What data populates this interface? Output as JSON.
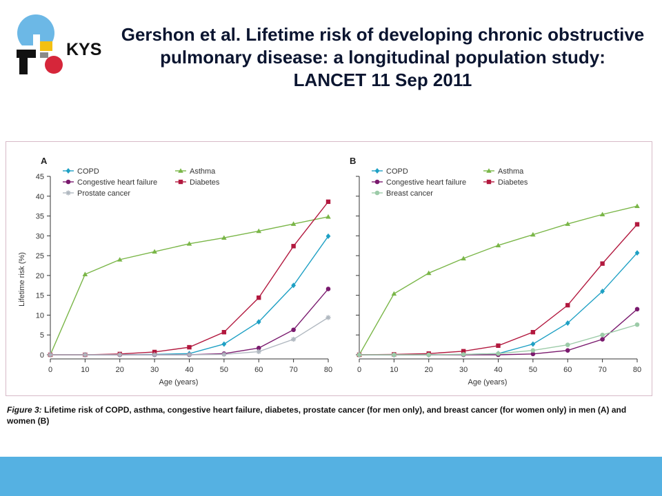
{
  "logo": {
    "text": "KYS",
    "colors": {
      "blue": "#6cb8e6",
      "red": "#d6263a",
      "black": "#111111",
      "yellow": "#f3c012",
      "gray": "#8a8a8a"
    }
  },
  "title": {
    "line1": "Gershon et al. Lifetime risk of developing chronic obstructive",
    "line2": "pulmonary disease: a longitudinal population study:",
    "line3": "LANCET 11 Sep 2011"
  },
  "caption": {
    "label": "Figure 3:",
    "text": " Lifetime risk of COPD, asthma, congestive heart failure, diabetes, prostate cancer (for men only), and breast cancer (for women only) in men (A) and women (B)"
  },
  "colors": {
    "copd": "#1ea0c4",
    "asthma": "#7ab648",
    "chf": "#7a1a6e",
    "diabetes": "#b2183e",
    "prostate": "#b0b8c0",
    "breast": "#9ccba8",
    "axis": "#333333",
    "frame": "#d7b9c7",
    "bottom_bar": "#55b1e2"
  },
  "chart_data": [
    {
      "panel_label": "A",
      "type": "line",
      "xlabel": "Age (years)",
      "ylabel": "Lifetime risk (%)",
      "x": [
        0,
        10,
        20,
        30,
        40,
        50,
        60,
        70,
        80
      ],
      "xticks": [
        "0",
        "10",
        "20",
        "30",
        "40",
        "50",
        "60",
        "70",
        "80"
      ],
      "yticks": [
        "0",
        "5",
        "10",
        "15",
        "20",
        "25",
        "30",
        "35",
        "40",
        "45"
      ],
      "xlim": [
        0,
        80
      ],
      "ylim": [
        0,
        45
      ],
      "legend_position": "top-left",
      "series": [
        {
          "name": "COPD",
          "key": "copd",
          "marker": "diamond",
          "values": [
            0,
            0,
            0,
            0.1,
            0.3,
            2.7,
            8.3,
            17.5,
            29.9
          ]
        },
        {
          "name": "Asthma",
          "key": "asthma",
          "marker": "triangle",
          "values": [
            0,
            20.3,
            24,
            26,
            28,
            29.5,
            31.2,
            33,
            34.8
          ]
        },
        {
          "name": "Congestive heart failure",
          "key": "chf",
          "marker": "circle",
          "values": [
            0,
            0,
            0,
            0,
            0,
            0.3,
            1.7,
            6.3,
            16.6
          ]
        },
        {
          "name": "Diabetes",
          "key": "diabetes",
          "marker": "square",
          "values": [
            0,
            0,
            0.2,
            0.7,
            1.9,
            5.7,
            14.4,
            27.4,
            38.6
          ]
        },
        {
          "name": "Prostate cancer",
          "key": "prostate",
          "marker": "star",
          "values": [
            0,
            0,
            0,
            0,
            0,
            0.1,
            0.8,
            3.9,
            9.4
          ]
        }
      ]
    },
    {
      "panel_label": "B",
      "type": "line",
      "xlabel": "Age (years)",
      "ylabel": "",
      "x": [
        0,
        10,
        20,
        30,
        40,
        50,
        60,
        70,
        80
      ],
      "xticks": [
        "0",
        "10",
        "20",
        "30",
        "40",
        "50",
        "60",
        "70",
        "80"
      ],
      "yticks": [],
      "xlim": [
        0,
        80
      ],
      "ylim": [
        0,
        45
      ],
      "legend_position": "top-left",
      "series": [
        {
          "name": "COPD",
          "key": "copd",
          "marker": "diamond",
          "values": [
            0,
            0,
            0,
            0.1,
            0.3,
            2.7,
            8,
            16,
            25.7
          ]
        },
        {
          "name": "Asthma",
          "key": "asthma",
          "marker": "triangle",
          "values": [
            0,
            15.4,
            20.6,
            24.3,
            27.6,
            30.3,
            33,
            35.4,
            37.5
          ]
        },
        {
          "name": "Congestive heart failure",
          "key": "chf",
          "marker": "circle",
          "values": [
            0,
            0,
            0,
            0,
            0,
            0.2,
            1.1,
            3.9,
            11.5
          ]
        },
        {
          "name": "Diabetes",
          "key": "diabetes",
          "marker": "square",
          "values": [
            0,
            0.1,
            0.3,
            0.9,
            2.3,
            5.7,
            12.5,
            23,
            32.9
          ]
        },
        {
          "name": "Breast cancer",
          "key": "breast",
          "marker": "circle",
          "values": [
            0,
            0,
            0,
            0.1,
            0.3,
            1.1,
            2.5,
            5,
            7.6
          ]
        }
      ]
    }
  ]
}
